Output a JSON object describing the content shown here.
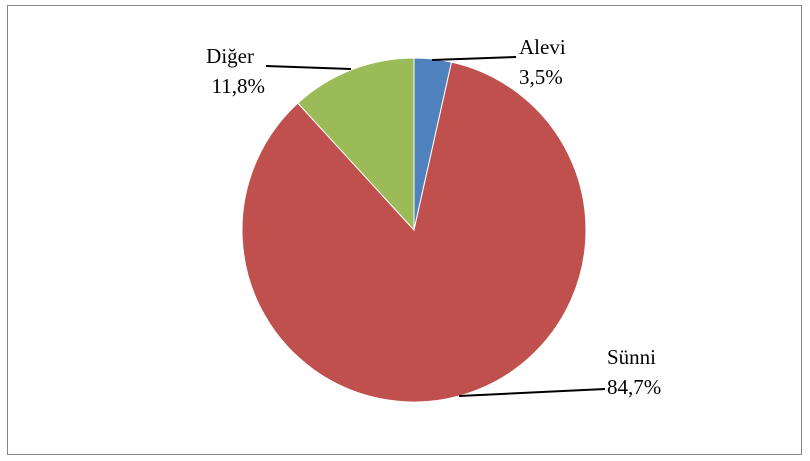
{
  "chart_data": {
    "type": "pie",
    "slices": [
      {
        "label": "Alevi",
        "value": 3.5,
        "value_label": "3,5%",
        "color": "#4f81bd"
      },
      {
        "label": "Sünni",
        "value": 84.7,
        "value_label": "84,7%",
        "color": "#c0504d"
      },
      {
        "label": "Diğer",
        "value": 11.8,
        "value_label": "11,8%",
        "color": "#9bbb59"
      }
    ],
    "start_angle_deg": 0,
    "direction": "clockwise",
    "legend": "none",
    "data_labels": "outside with leader lines"
  }
}
